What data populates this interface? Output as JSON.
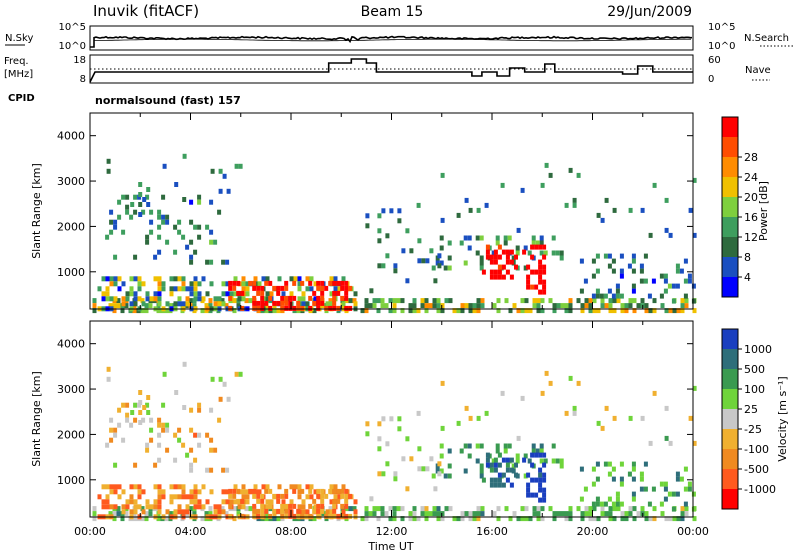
{
  "header": {
    "station": "Inuvik (fitACF)",
    "beam": "Beam 15",
    "date": "29/Jun/2009"
  },
  "noise_panel": {
    "left_label": "N.Sky",
    "left_ticks": [
      "10^5",
      "10^0"
    ],
    "right_label": "N.Search",
    "right_ticks": [
      "10^5",
      "10^0"
    ]
  },
  "freq_panel": {
    "left_label_1": "Freq.",
    "left_label_2": "[MHz]",
    "left_ticks": [
      "18",
      "8"
    ],
    "right_label": "Nave",
    "right_ticks": [
      "60",
      "0"
    ],
    "cpid_label": "CPID",
    "cpid_text": "normalsound (fast) 157"
  },
  "colors": {
    "power": [
      "#0000ff",
      "#1a4fc0",
      "#2e6a3e",
      "#3e9e5e",
      "#7ecf3e",
      "#f0c000",
      "#ff8c00",
      "#ff4d00",
      "#ff0000"
    ],
    "velocity": [
      "#ff0000",
      "#ff5a1e",
      "#f08a20",
      "#f0b030",
      "#c8c8c8",
      "#6fd43a",
      "#3a9a50",
      "#2e6e7a",
      "#1a3fbf"
    ]
  },
  "chart_data": [
    {
      "type": "heatmap",
      "name": "power-panel",
      "ylabel": "Slant Range [km]",
      "yticks": [
        1000,
        2000,
        3000,
        4000
      ],
      "ylim": [
        180,
        4500
      ],
      "xlim": [
        0,
        24
      ],
      "colorbar_label": "Power [dB]",
      "colorbar_ticks": [
        "4",
        "8",
        "12",
        "16",
        "20",
        "24",
        "28"
      ],
      "colorbar_range": [
        0,
        32
      ]
    },
    {
      "type": "heatmap",
      "name": "velocity-panel",
      "ylabel": "Slant Range [km]",
      "yticks": [
        1000,
        2000,
        3000,
        4000
      ],
      "ylim": [
        180,
        4500
      ],
      "xlim": [
        0,
        24
      ],
      "xticks": [
        "00:00",
        "04:00",
        "08:00",
        "12:00",
        "16:00",
        "20:00",
        "00:00"
      ],
      "xlabel": "Time UT",
      "colorbar_label": "Velocity [m s⁻¹]",
      "colorbar_ticks": [
        "1000",
        "500",
        "100",
        "25",
        "-25",
        "-100",
        "-500",
        "-1000"
      ]
    }
  ]
}
